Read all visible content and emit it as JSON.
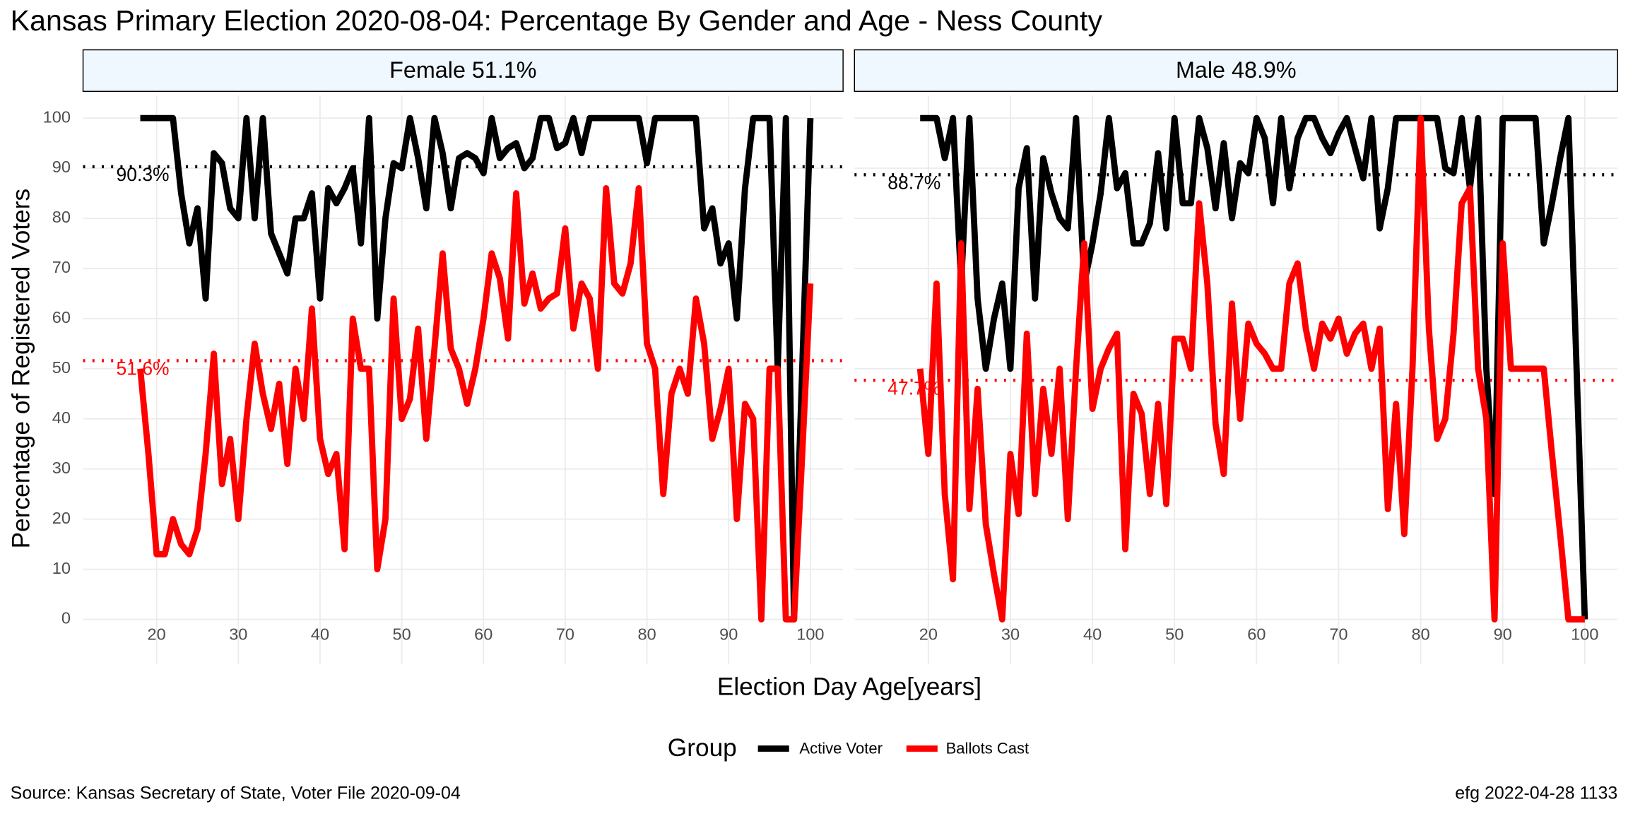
{
  "title": "Kansas Primary Election 2020-08-04:  Percentage By Gender and Age - Ness County",
  "x_label": "Election Day Age[years]",
  "y_label": "Percentage of Registered Voters",
  "legend_title": "Group",
  "caption_left": "Source:  Kansas Secretary of State, Voter File  2020-09-04",
  "caption_right": "efg 2022-04-28 1133",
  "chart_data": [
    {
      "type": "line",
      "facet_title": "Female 51.1%",
      "xlim": [
        11,
        104
      ],
      "ylim": [
        -9,
        104.5
      ],
      "xticks": [
        20,
        30,
        40,
        50,
        60,
        70,
        80,
        90,
        100
      ],
      "yticks": [
        0,
        10,
        20,
        30,
        40,
        50,
        60,
        70,
        80,
        90,
        100
      ],
      "grid": true,
      "x": [
        18,
        19,
        20,
        21,
        22,
        23,
        24,
        25,
        26,
        27,
        28,
        29,
        30,
        31,
        32,
        33,
        34,
        35,
        36,
        37,
        38,
        39,
        40,
        41,
        42,
        43,
        44,
        45,
        46,
        47,
        48,
        49,
        50,
        51,
        52,
        53,
        54,
        55,
        56,
        57,
        58,
        59,
        60,
        61,
        62,
        63,
        64,
        65,
        66,
        67,
        68,
        69,
        70,
        71,
        72,
        73,
        74,
        75,
        76,
        77,
        78,
        79,
        80,
        81,
        82,
        83,
        84,
        85,
        86,
        87,
        88,
        89,
        90,
        91,
        92,
        93,
        94,
        95,
        96,
        97,
        98,
        99,
        100
      ],
      "series": [
        {
          "name": "Active Voter",
          "color": "#000000",
          "values": [
            100,
            100,
            100,
            100,
            100,
            85,
            75,
            82,
            64,
            93,
            91,
            82,
            80,
            100,
            80,
            100,
            77,
            73,
            69,
            80,
            80,
            85,
            64,
            86,
            83,
            86,
            90,
            75,
            100,
            60,
            80,
            91,
            90,
            100,
            92,
            82,
            100,
            93,
            82,
            92,
            93,
            92,
            89,
            100,
            92,
            94,
            95,
            90,
            92,
            100,
            100,
            94,
            95,
            100,
            93,
            100,
            100,
            100,
            100,
            100,
            100,
            100,
            91,
            100,
            100,
            100,
            100,
            100,
            100,
            78,
            82,
            71,
            75,
            60,
            86,
            100,
            100,
            100,
            50,
            100,
            0,
            50,
            100
          ]
        },
        {
          "name": "Ballots Cast",
          "color": "#ff0000",
          "values": [
            50,
            33,
            13,
            13,
            20,
            15,
            13,
            18,
            33,
            53,
            27,
            36,
            20,
            40,
            55,
            45,
            38,
            47,
            31,
            50,
            40,
            62,
            36,
            29,
            33,
            14,
            60,
            50,
            50,
            10,
            20,
            64,
            40,
            44,
            58,
            36,
            54,
            73,
            54,
            50,
            43,
            50,
            60,
            73,
            68,
            56,
            85,
            63,
            69,
            62,
            64,
            65,
            78,
            58,
            67,
            64,
            50,
            86,
            67,
            65,
            71,
            86,
            55,
            50,
            25,
            45,
            50,
            45,
            64,
            55,
            36,
            42,
            50,
            20,
            43,
            40,
            0,
            50,
            50,
            0,
            0,
            33,
            67
          ]
        }
      ],
      "reference_lines": [
        {
          "value": 90.3,
          "label": "90.3%",
          "color": "#000000"
        },
        {
          "value": 51.6,
          "label": "51.6%",
          "color": "#ff0000"
        }
      ]
    },
    {
      "type": "line",
      "facet_title": "Male 48.9%",
      "xlim": [
        11,
        104
      ],
      "ylim": [
        -9,
        104.5
      ],
      "xticks": [
        20,
        30,
        40,
        50,
        60,
        70,
        80,
        90,
        100
      ],
      "yticks": [
        0,
        10,
        20,
        30,
        40,
        50,
        60,
        70,
        80,
        90,
        100
      ],
      "grid": true,
      "x": [
        19,
        20,
        21,
        22,
        23,
        24,
        25,
        26,
        27,
        28,
        29,
        30,
        31,
        32,
        33,
        34,
        35,
        36,
        37,
        38,
        39,
        40,
        41,
        42,
        43,
        44,
        45,
        46,
        47,
        48,
        49,
        50,
        51,
        52,
        53,
        54,
        55,
        56,
        57,
        58,
        59,
        60,
        61,
        62,
        63,
        64,
        65,
        66,
        67,
        68,
        69,
        70,
        71,
        72,
        73,
        74,
        75,
        76,
        77,
        78,
        79,
        80,
        81,
        82,
        83,
        84,
        85,
        86,
        87,
        88,
        89,
        90,
        91,
        92,
        93,
        94,
        95,
        96,
        97,
        98,
        99,
        100
      ],
      "series": [
        {
          "name": "Active Voter",
          "color": "#000000",
          "values": [
            100,
            100,
            100,
            92,
            100,
            67,
            100,
            64,
            50,
            60,
            67,
            50,
            86,
            94,
            64,
            92,
            85,
            80,
            78,
            100,
            67,
            75,
            85,
            100,
            86,
            89,
            75,
            75,
            79,
            93,
            78,
            100,
            83,
            83,
            100,
            94,
            82,
            95,
            80,
            91,
            89,
            100,
            96,
            83,
            100,
            86,
            96,
            100,
            100,
            96,
            93,
            97,
            100,
            94,
            88,
            100,
            78,
            86,
            100,
            100,
            100,
            100,
            100,
            100,
            90,
            89,
            100,
            86,
            100,
            50,
            25,
            100,
            100,
            100,
            100,
            100,
            75,
            83,
            92,
            100,
            50,
            0
          ]
        },
        {
          "name": "Ballots Cast",
          "color": "#ff0000",
          "values": [
            50,
            33,
            67,
            25,
            8,
            75,
            22,
            46,
            19,
            9,
            0,
            33,
            21,
            57,
            25,
            46,
            33,
            50,
            20,
            50,
            75,
            42,
            50,
            54,
            57,
            14,
            45,
            41,
            25,
            43,
            23,
            56,
            56,
            50,
            83,
            67,
            39,
            29,
            63,
            40,
            59,
            55,
            53,
            50,
            50,
            67,
            71,
            58,
            50,
            59,
            56,
            60,
            53,
            57,
            59,
            50,
            58,
            22,
            43,
            17,
            50,
            100,
            58,
            36,
            40,
            57,
            83,
            86,
            50,
            40,
            0,
            75,
            50,
            50,
            50,
            50,
            50,
            33,
            17,
            0,
            0,
            0
          ]
        }
      ],
      "reference_lines": [
        {
          "value": 88.7,
          "label": "88.7%",
          "color": "#000000"
        },
        {
          "value": 47.7,
          "label": "47.7%",
          "color": "#ff0000"
        }
      ]
    }
  ]
}
